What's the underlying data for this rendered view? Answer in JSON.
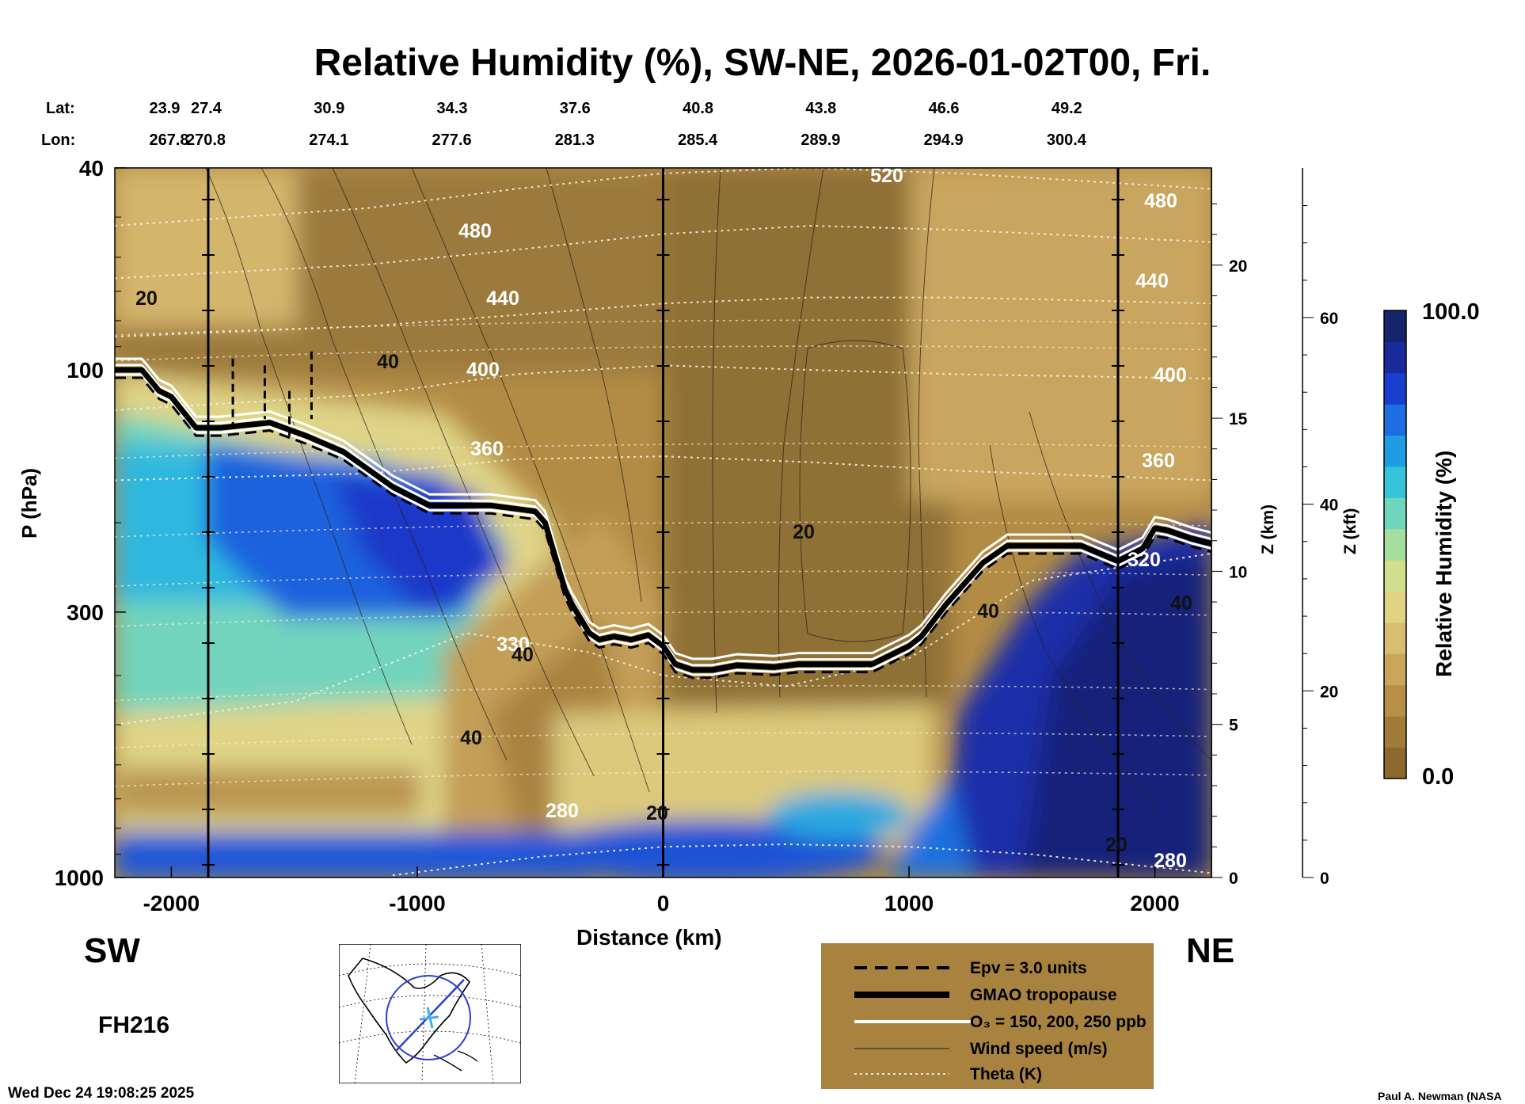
{
  "header": {
    "title": "Relative Humidity (%), SW-NE, 2026-01-02T00, Fri."
  },
  "chart_data": {
    "type": "heatmap",
    "title": "Relative Humidity (%), SW-NE, 2026-01-02T00, Fri.",
    "xlabel": "Distance (km)",
    "ylabel": "P (hPa)",
    "right_label_1": "Z (km)",
    "right_label_2": "Z (kft)",
    "xlim": [
      -2230,
      2230
    ],
    "ylim": [
      1000,
      40
    ],
    "x_ticks": [
      -2000,
      -1000,
      0,
      1000,
      2000
    ],
    "x_tick_labels": [
      "-2000",
      "-1000",
      "0",
      "1000",
      "2000"
    ],
    "p_ticks": [
      40,
      100,
      300,
      1000
    ],
    "p_tick_labels": [
      "40",
      "100",
      "300",
      "1000"
    ],
    "z_km_ticks": [
      0,
      5,
      10,
      15,
      20
    ],
    "z_km_tick_labels": [
      "0",
      "5",
      "10",
      "15",
      "20"
    ],
    "z_kft_ticks": [
      0,
      20,
      40,
      60
    ],
    "z_kft_tick_labels": [
      "0",
      "20",
      "40",
      "60"
    ],
    "lat_label": "Lat:",
    "lon_label": "Lon:",
    "lats": [
      "23.9",
      "27.4",
      "30.9",
      "34.3",
      "37.6",
      "40.8",
      "43.8",
      "46.6",
      "49.2"
    ],
    "lons": [
      "267.8",
      "270.8",
      "274.1",
      "277.6",
      "281.3",
      "285.4",
      "289.9",
      "294.9",
      "300.4"
    ],
    "colorbar": {
      "label": "Relative Humidity (%)",
      "min": 0.0,
      "max": 100.0,
      "min_label": "0.0",
      "max_label": "100.0",
      "colors": [
        "#8c6a2e",
        "#a17b38",
        "#b78f47",
        "#c9a65a",
        "#d9bd70",
        "#e2d283",
        "#d2e08e",
        "#a8de9d",
        "#6fd6bd",
        "#37c3da",
        "#1f9ce4",
        "#1d6ee0",
        "#1a3fd0",
        "#1b2a9a",
        "#15246b"
      ]
    },
    "theta_levels": [
      {
        "value": 280,
        "label": "280"
      },
      {
        "value": 320,
        "label": "320"
      },
      {
        "value": 330,
        "label": "330"
      },
      {
        "value": 360,
        "label": "360"
      },
      {
        "value": 400,
        "label": "400"
      },
      {
        "value": 440,
        "label": "440"
      },
      {
        "value": 480,
        "label": "480"
      },
      {
        "value": 520,
        "label": "520"
      }
    ],
    "wind_labels": [
      "20",
      "40"
    ],
    "tropopause": {
      "name": "GMAO tropopause",
      "x": [
        -2230,
        -2120,
        -2050,
        -2000,
        -1900,
        -1800,
        -1600,
        -1450,
        -1300,
        -1100,
        -950,
        -700,
        -520,
        -480,
        -400,
        -370,
        -300,
        -260,
        -200,
        -130,
        -60,
        0,
        50,
        120,
        200,
        300,
        450,
        550,
        700,
        850,
        1000,
        1050,
        1150,
        1300,
        1400,
        1450,
        1530,
        1700,
        1850,
        1950,
        2000,
        2050,
        2150,
        2230
      ],
      "p": [
        100,
        100,
        110,
        113,
        130,
        130,
        127,
        135,
        145,
        170,
        185,
        185,
        190,
        200,
        270,
        290,
        330,
        340,
        335,
        340,
        333,
        350,
        380,
        390,
        390,
        382,
        385,
        380,
        380,
        380,
        350,
        335,
        290,
        240,
        222,
        222,
        222,
        222,
        238,
        225,
        205,
        207,
        215,
        220
      ]
    },
    "theta_profiles": [
      {
        "value": 280,
        "x": [
          -1100,
          -500,
          0,
          500,
          1000,
          1500,
          2230
        ],
        "p": [
          990,
          910,
          870,
          860,
          870,
          900,
          980
        ]
      },
      {
        "value": 320,
        "x": [
          -2230,
          -1500,
          -800,
          -300,
          0,
          500,
          1000,
          1500,
          2230
        ],
        "p": [
          500,
          450,
          330,
          360,
          400,
          420,
          370,
          260,
          230
        ]
      },
      {
        "value": 360,
        "x": [
          -2230,
          -1200,
          -600,
          0,
          600,
          1200,
          2230
        ],
        "p": [
          165,
          160,
          150,
          148,
          152,
          158,
          165
        ]
      },
      {
        "value": 400,
        "x": [
          -2230,
          -1200,
          -600,
          0,
          600,
          1200,
          2230
        ],
        "p": [
          120,
          112,
          102,
          98,
          100,
          102,
          104
        ]
      },
      {
        "value": 440,
        "x": [
          -2230,
          -1200,
          -600,
          0,
          600,
          1200,
          2230
        ],
        "p": [
          86,
          82,
          78,
          74,
          72,
          72,
          74
        ]
      },
      {
        "value": 480,
        "x": [
          -2230,
          -1200,
          -600,
          0,
          600,
          1200,
          2230
        ],
        "p": [
          66,
          62,
          58,
          54,
          52,
          53,
          56
        ]
      },
      {
        "value": 520,
        "x": [
          -2230,
          -1200,
          -600,
          0,
          600,
          1200,
          2230
        ],
        "p": [
          52,
          48,
          44,
          41,
          40,
          41,
          44
        ]
      }
    ],
    "cross_sections_km": [
      -1850,
      0,
      1850
    ],
    "legend": [
      {
        "style": "dashed",
        "label": "Epv = 3.0 units"
      },
      {
        "style": "thick",
        "label": "GMAO tropopause"
      },
      {
        "style": "white",
        "label": "O₃ = 150, 200, 250 ppb"
      },
      {
        "style": "thin",
        "label": "Wind speed (m/s)"
      },
      {
        "style": "dotted",
        "label": "Theta (K)"
      }
    ]
  },
  "annotations": {
    "left_dir": "SW",
    "right_dir": "NE",
    "forecast_hour": "FH216",
    "timestamp": "Wed Dec 24 19:08:25 2025",
    "credit": "Paul A. Newman (NASA"
  }
}
